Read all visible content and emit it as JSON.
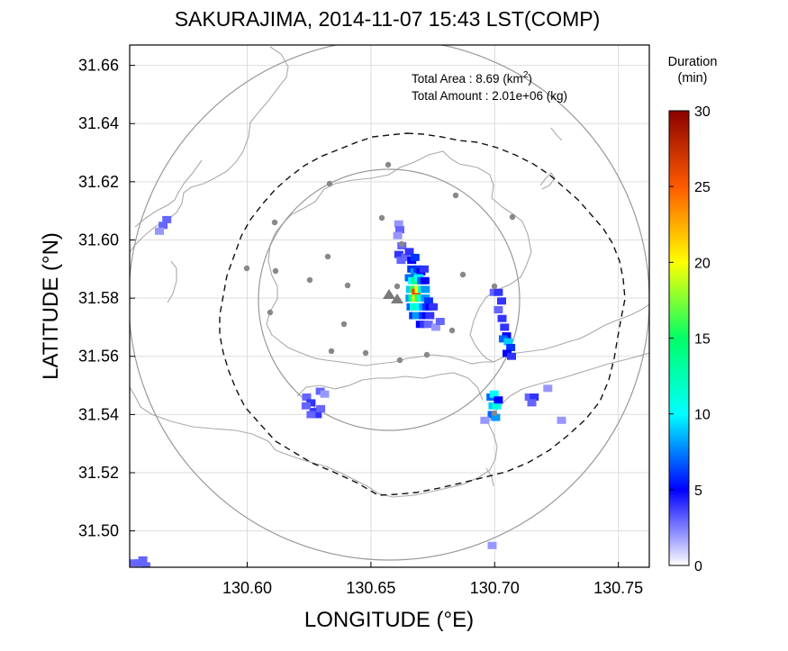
{
  "chart_data": {
    "type": "heatmap",
    "title": "SAKURAJIMA, 2014-11-07 15:43 LST(COMP)",
    "xlabel": "LONGITUDE (°E)",
    "ylabel": "LATITUDE (°N)",
    "xlim": [
      130.5525,
      130.7625
    ],
    "ylim": [
      31.4875,
      31.667
    ],
    "x_ticks": [
      "130.60",
      "130.65",
      "130.70",
      "130.75"
    ],
    "y_ticks": [
      "31.50",
      "31.52",
      "31.54",
      "31.56",
      "31.58",
      "31.60",
      "31.62",
      "31.64",
      "31.66"
    ],
    "grid": true,
    "info": {
      "area_label": "Total Area   : 8.69 (km",
      "area_sup": "2",
      "area_close": ")",
      "amount_label": "Total Amount : 2.01e+06 (kg)"
    },
    "colorbar": {
      "title_line1": "Duration",
      "title_line2": "(min)",
      "ticks": [
        "0",
        "5",
        "10",
        "15",
        "20",
        "25",
        "30"
      ],
      "range": [
        0,
        30
      ]
    },
    "cells": [
      [
        130.6612,
        31.6055,
        2
      ],
      [
        130.6617,
        31.6035,
        3
      ],
      [
        130.6608,
        31.6015,
        2
      ],
      [
        130.6625,
        31.598,
        3
      ],
      [
        130.6613,
        31.595,
        4
      ],
      [
        130.6622,
        31.593,
        3
      ],
      [
        130.664,
        31.594,
        3
      ],
      [
        130.6655,
        31.596,
        4
      ],
      [
        130.6665,
        31.593,
        5
      ],
      [
        130.6678,
        31.594,
        6
      ],
      [
        130.6665,
        31.59,
        6
      ],
      [
        130.6678,
        31.589,
        8
      ],
      [
        130.669,
        31.59,
        6
      ],
      [
        130.6702,
        31.589,
        5
      ],
      [
        130.6715,
        31.59,
        4
      ],
      [
        130.6655,
        31.587,
        7
      ],
      [
        130.6668,
        31.586,
        10
      ],
      [
        130.668,
        31.586,
        14
      ],
      [
        130.6693,
        31.587,
        10
      ],
      [
        130.6705,
        31.586,
        7
      ],
      [
        130.6718,
        31.586,
        5
      ],
      [
        130.666,
        31.583,
        9
      ],
      [
        130.6673,
        31.583,
        16
      ],
      [
        130.6683,
        31.582,
        26
      ],
      [
        130.6695,
        31.583,
        20
      ],
      [
        130.6708,
        31.583,
        12
      ],
      [
        130.672,
        31.583,
        8
      ],
      [
        130.6658,
        31.58,
        8
      ],
      [
        130.667,
        31.58,
        14
      ],
      [
        130.6683,
        31.58,
        19
      ],
      [
        130.6695,
        31.58,
        16
      ],
      [
        130.6708,
        31.58,
        11
      ],
      [
        130.672,
        31.58,
        8
      ],
      [
        130.6733,
        31.579,
        6
      ],
      [
        130.6662,
        31.577,
        7
      ],
      [
        130.6675,
        31.577,
        11
      ],
      [
        130.6688,
        31.577,
        12
      ],
      [
        130.67,
        31.577,
        10
      ],
      [
        130.6713,
        31.577,
        8
      ],
      [
        130.6726,
        31.577,
        6
      ],
      [
        130.674,
        31.577,
        5
      ],
      [
        130.6752,
        31.577,
        4
      ],
      [
        130.6672,
        31.574,
        6
      ],
      [
        130.6685,
        31.574,
        8
      ],
      [
        130.6698,
        31.574,
        8
      ],
      [
        130.6712,
        31.574,
        6
      ],
      [
        130.6725,
        31.574,
        5
      ],
      [
        130.6738,
        31.574,
        4
      ],
      [
        130.67,
        31.571,
        5
      ],
      [
        130.6715,
        31.571,
        4
      ],
      [
        130.6732,
        31.571,
        3
      ],
      [
        130.6762,
        31.57,
        2
      ],
      [
        130.678,
        31.572,
        3
      ],
      [
        130.6998,
        31.582,
        3
      ],
      [
        130.7015,
        31.582,
        4
      ],
      [
        130.7028,
        31.579,
        4
      ],
      [
        130.7015,
        31.576,
        3
      ],
      [
        130.703,
        31.573,
        4
      ],
      [
        130.704,
        31.57,
        4
      ],
      [
        130.7048,
        31.567,
        5
      ],
      [
        130.7035,
        31.566,
        7
      ],
      [
        130.7055,
        31.565,
        9
      ],
      [
        130.7065,
        31.563,
        6
      ],
      [
        130.705,
        31.561,
        5
      ],
      [
        130.7068,
        31.56,
        4
      ],
      [
        130.6985,
        31.546,
        7
      ],
      [
        130.6998,
        31.547,
        10
      ],
      [
        130.6993,
        31.543,
        9
      ],
      [
        130.7008,
        31.543,
        11
      ],
      [
        130.699,
        31.54,
        7
      ],
      [
        130.7004,
        31.539,
        8
      ],
      [
        130.7015,
        31.545,
        5
      ],
      [
        130.696,
        31.538,
        2
      ],
      [
        130.714,
        31.546,
        3
      ],
      [
        130.716,
        31.546,
        4
      ],
      [
        130.715,
        31.544,
        3
      ],
      [
        130.7215,
        31.549,
        2
      ],
      [
        130.727,
        31.538,
        2
      ],
      [
        130.624,
        31.546,
        3
      ],
      [
        130.6258,
        31.544,
        4
      ],
      [
        130.627,
        31.541,
        4
      ],
      [
        130.6283,
        31.54,
        4
      ],
      [
        130.6258,
        31.54,
        3
      ],
      [
        130.6295,
        31.548,
        3
      ],
      [
        130.6313,
        31.547,
        2
      ],
      [
        130.6238,
        31.543,
        3
      ],
      [
        130.6297,
        31.542,
        3
      ],
      [
        130.566,
        31.605,
        3
      ],
      [
        130.5675,
        31.607,
        3
      ],
      [
        130.5645,
        31.603,
        2
      ],
      [
        130.5545,
        31.489,
        3
      ],
      [
        130.5563,
        31.489,
        3
      ],
      [
        130.5578,
        31.49,
        3
      ],
      [
        130.559,
        31.488,
        3
      ],
      [
        130.699,
        31.495,
        2
      ]
    ]
  }
}
